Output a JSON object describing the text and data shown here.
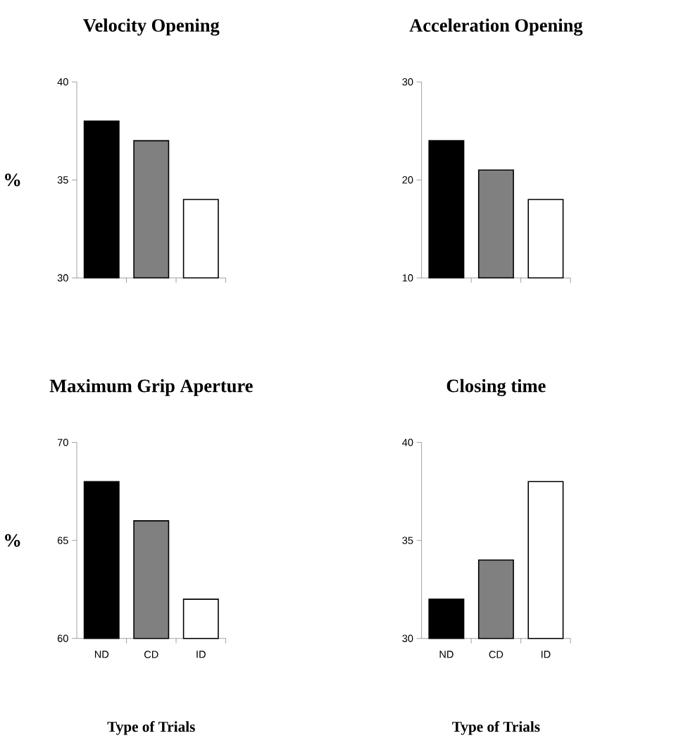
{
  "chart_data": [
    {
      "type": "bar",
      "title": "Velocity Opening",
      "ylabel": "%",
      "categories": [
        null,
        null,
        null
      ],
      "values": [
        38,
        37,
        34
      ],
      "colors": [
        "#000000",
        "#808080",
        "#ffffff"
      ],
      "ylim": [
        30,
        40
      ],
      "yticks": [
        30,
        35,
        40
      ],
      "tick_labels": "y"
    },
    {
      "type": "bar",
      "title": "Acceleration Opening",
      "categories": [
        null,
        null,
        null
      ],
      "values": [
        24,
        21,
        18
      ],
      "colors": [
        "#000000",
        "#808080",
        "#ffffff"
      ],
      "ylim": [
        10,
        30
      ],
      "yticks": [
        10,
        20,
        30
      ],
      "tick_labels": "y"
    },
    {
      "type": "bar",
      "title": "Maximum Grip Aperture",
      "ylabel": "%",
      "xlabel": "Type of Trials",
      "categories": [
        "ND",
        "CD",
        "ID"
      ],
      "values": [
        68,
        66,
        62
      ],
      "colors": [
        "#000000",
        "#808080",
        "#ffffff"
      ],
      "ylim": [
        60,
        70
      ],
      "yticks": [
        60,
        65,
        70
      ]
    },
    {
      "type": "bar",
      "title": "Closing time",
      "xlabel": "Type of Trials",
      "categories": [
        "ND",
        "CD",
        "ID"
      ],
      "values": [
        32,
        34,
        38
      ],
      "colors": [
        "#000000",
        "#808080",
        "#ffffff"
      ],
      "ylim": [
        30,
        40
      ],
      "yticks": [
        30,
        35,
        40
      ]
    }
  ]
}
